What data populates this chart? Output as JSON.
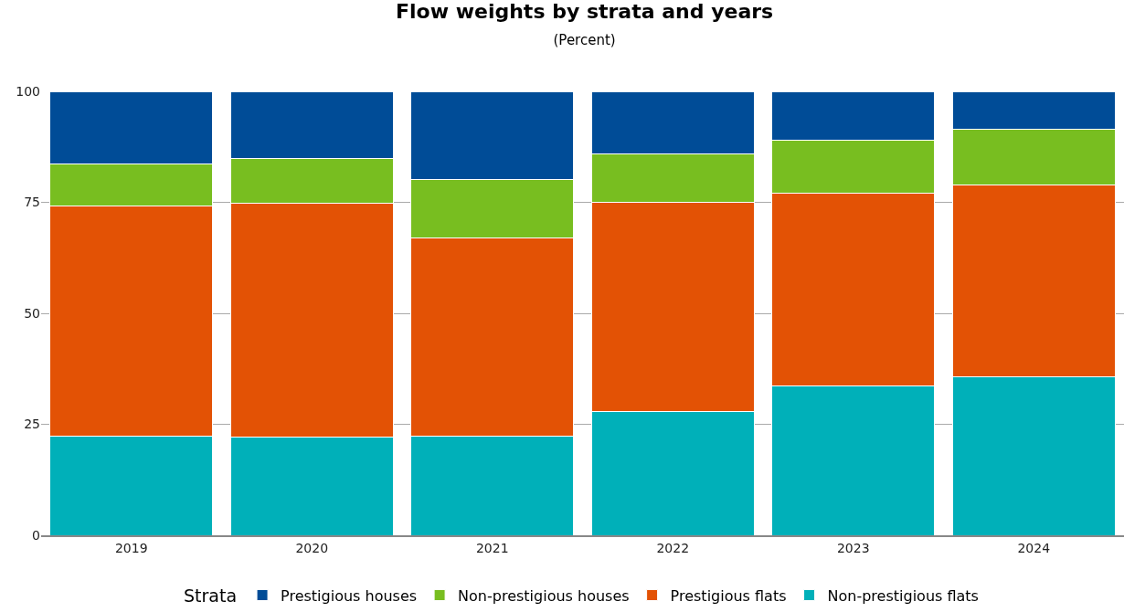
{
  "chart_data": {
    "type": "bar",
    "title": "Flow weights by strata and years",
    "subtitle": "(Percent)",
    "legend_title": "Strata",
    "categories": [
      "2019",
      "2020",
      "2021",
      "2022",
      "2023",
      "2024"
    ],
    "stacked": true,
    "ylim": [
      0,
      100
    ],
    "yticks": [
      0,
      25,
      50,
      75,
      100
    ],
    "grid": "y",
    "legend": "bottom",
    "series": [
      {
        "name": "Non-prestigious flats",
        "color": "#00b0b9",
        "values": [
          22.4,
          22.2,
          22.4,
          27.8,
          33.7,
          35.7
        ]
      },
      {
        "name": "Prestigious flats",
        "color": "#e35205",
        "values": [
          51.7,
          52.5,
          44.5,
          47.1,
          43.4,
          43.3
        ]
      },
      {
        "name": "Non-prestigious houses",
        "color": "#78be20",
        "values": [
          9.6,
          10.2,
          13.3,
          11.0,
          11.9,
          12.4
        ]
      },
      {
        "name": "Prestigious houses",
        "color": "#004c97",
        "values": [
          16.3,
          15.1,
          19.8,
          14.1,
          11.0,
          8.6
        ]
      }
    ]
  }
}
